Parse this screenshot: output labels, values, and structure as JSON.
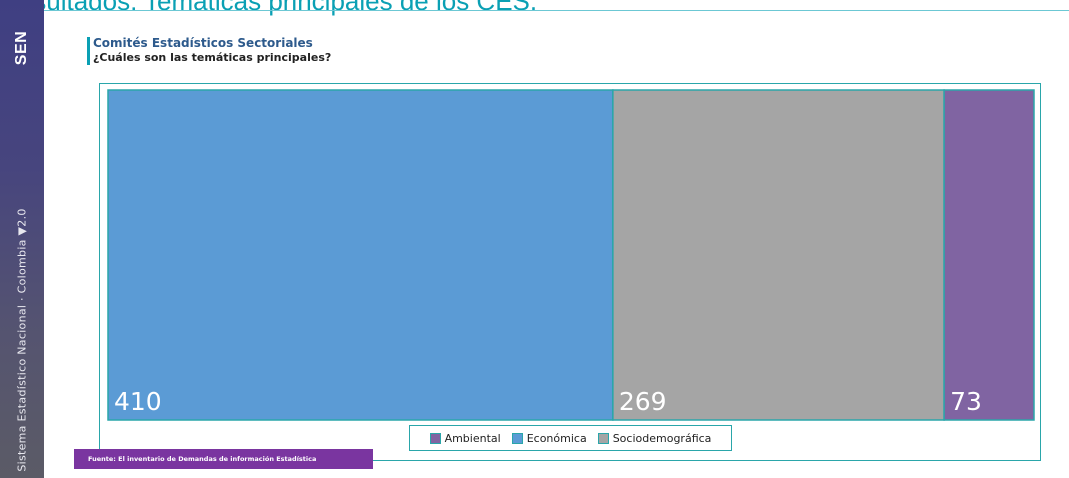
{
  "page": {
    "top_title": "Resultados: Temáticas principales de los CES.",
    "brand": "SEN",
    "brand_mark": "™",
    "band_text": "Sistema Estadístico Nacional · Colombia ▼2.0",
    "heading_title": "Comités Estadísticos Sectoriales",
    "heading_subtitle": "¿Cuáles son las temáticas principales?",
    "source": "Fuente: El inventario de Demandas de información Estadística"
  },
  "chart_data": {
    "type": "bar",
    "layout": "stacked-horizontal-100",
    "categories": [
      "Económica",
      "Sociodemográfica",
      "Ambiental"
    ],
    "values": [
      410,
      269,
      73
    ],
    "colors": {
      "Económica": "#5b9bd5",
      "Sociodemográfica": "#a5a5a5",
      "Ambiental": "#8064a2",
      "border": "#2aa6aa"
    },
    "legend": {
      "position": "bottom",
      "entries": [
        {
          "label": "Ambiental",
          "color": "#8064a2"
        },
        {
          "label": "Económica",
          "color": "#5b9bd5"
        },
        {
          "label": "Sociodemográfica",
          "color": "#a5a5a5"
        }
      ]
    },
    "title": "",
    "xlabel": "",
    "ylabel": "",
    "grid": false
  }
}
